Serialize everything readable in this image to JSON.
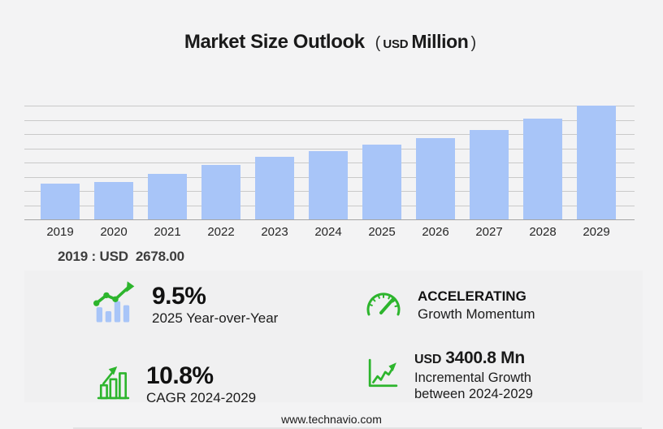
{
  "title": {
    "main": "Market Size Outlook",
    "paren_open": "(",
    "unit_prefix": "USD",
    "unit": "Million",
    "paren_close": ")"
  },
  "chart_data": {
    "type": "bar",
    "title": "Market Size Outlook (USD Million)",
    "categories": [
      "2019",
      "2020",
      "2021",
      "2022",
      "2023",
      "2024",
      "2025",
      "2026",
      "2027",
      "2028",
      "2029"
    ],
    "values": [
      2678.0,
      2790,
      3395,
      4035,
      4640,
      5076.3,
      5558.6,
      6090,
      6690,
      7490,
      8477.1
    ],
    "ylim": [
      0,
      8480
    ],
    "gridline_count": 8,
    "grid": "horizontal-only",
    "legend": "none",
    "xlabel": "",
    "ylabel": "",
    "bar_color": "#a8c5f8",
    "first_year_callout": "2019 : USD  2678.00"
  },
  "annotation": "2019 : USD  2678.00",
  "stats": [
    {
      "id": "yoy",
      "icon": "trend-bars-icon",
      "value": "9.5%",
      "label": "2025 Year-over-Year"
    },
    {
      "id": "momentum",
      "icon": "gauge-icon",
      "value": "ACCELERATING",
      "label": "Growth Momentum"
    },
    {
      "id": "cagr",
      "icon": "growth-bars-icon",
      "value": "10.8%",
      "label": "CAGR 2024-2029"
    },
    {
      "id": "incremental",
      "icon": "line-chart-icon",
      "value_prefix": "USD",
      "value": "3400.8 Mn",
      "label_line1": "Incremental Growth",
      "label_line2": "between 2024-2029"
    }
  ],
  "footer": {
    "url": "www.technavio.com"
  },
  "colors": {
    "background": "#f3f3f4",
    "panel": "#f0f0f1",
    "bar": "#a8c5f8",
    "gridline": "#c9c9c9",
    "accent_green": "#2db52d"
  }
}
